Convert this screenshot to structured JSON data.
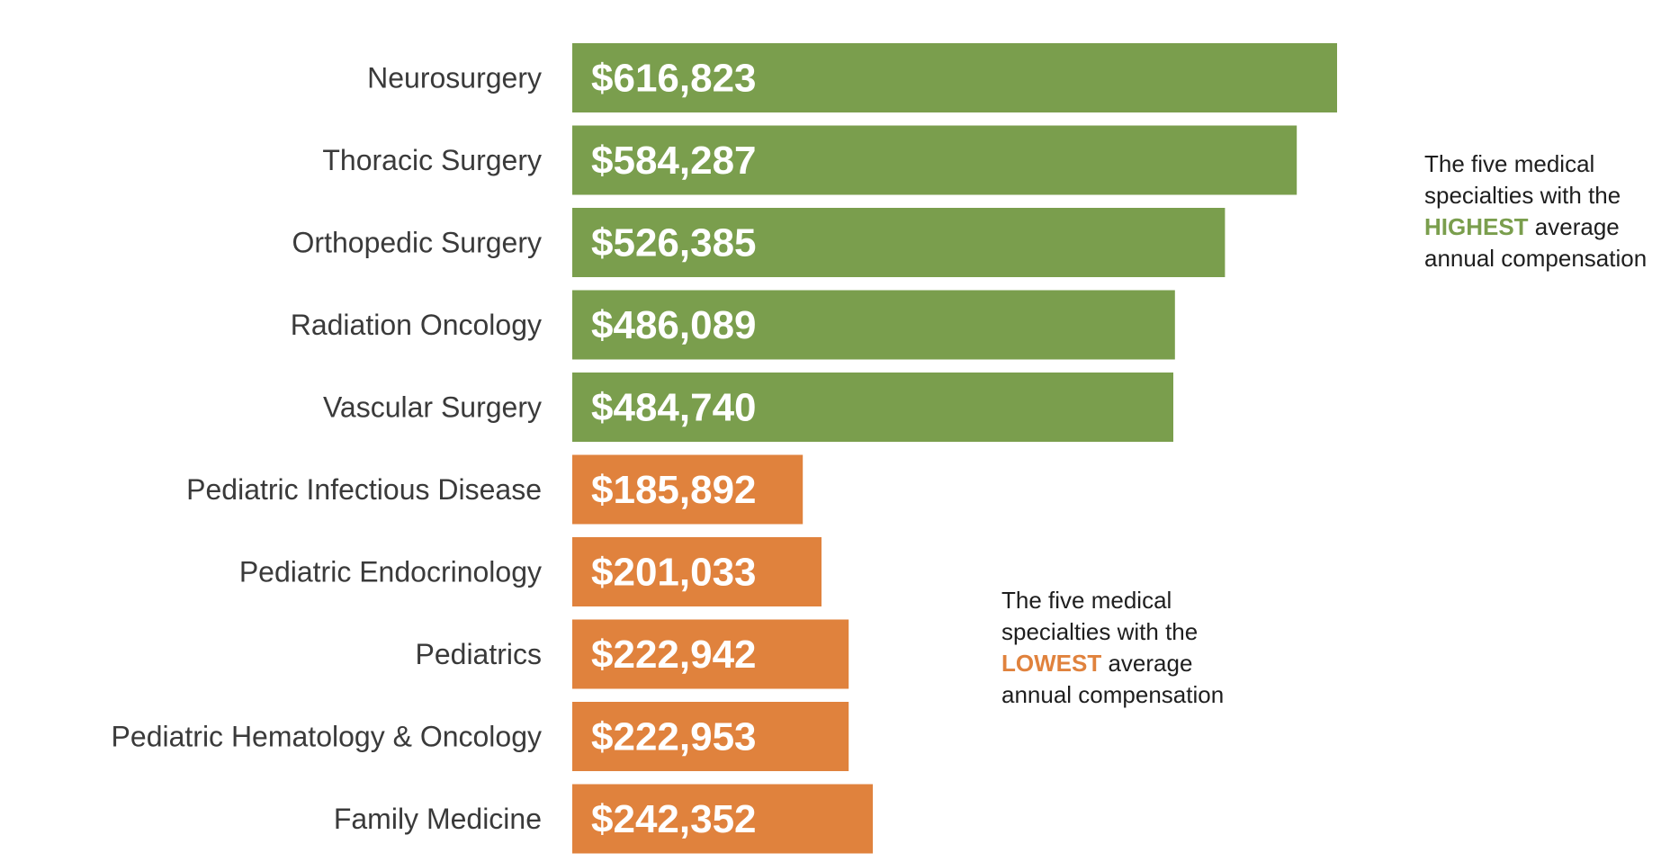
{
  "colors": {
    "high": "#7a9e4d",
    "low": "#e0823d"
  },
  "chart_data": {
    "type": "bar",
    "orientation": "horizontal",
    "title": "",
    "xlabel": "",
    "ylabel": "",
    "xlim": [
      0,
      650000
    ],
    "grid": false,
    "legend": "none",
    "categories": [
      "Neurosurgery",
      "Thoracic Surgery",
      "Orthopedic Surgery",
      "Radiation Oncology",
      "Vascular Surgery",
      "Pediatric Infectious Disease",
      "Pediatric Endocrinology",
      "Pediatrics",
      "Pediatric Hematology & Oncology",
      "Family Medicine"
    ],
    "values": [
      616823,
      584287,
      526385,
      486089,
      484740,
      185892,
      201033,
      222942,
      222953,
      242352
    ],
    "value_labels": [
      "$616,823",
      "$584,287",
      "$526,385",
      "$486,089",
      "$484,740",
      "$185,892",
      "$201,033",
      "$222,942",
      "$222,953",
      "$242,352"
    ],
    "groups": [
      "high",
      "high",
      "high",
      "high",
      "high",
      "low",
      "low",
      "low",
      "low",
      "low"
    ],
    "annotations": {
      "high": {
        "prefix": "The five medical specialties with the",
        "emphasis": "HIGHEST",
        "suffix": "average annual compensation"
      },
      "low": {
        "prefix": "The five medical specialties with the",
        "emphasis": "LOWEST",
        "suffix": "average annual compensation"
      }
    }
  }
}
